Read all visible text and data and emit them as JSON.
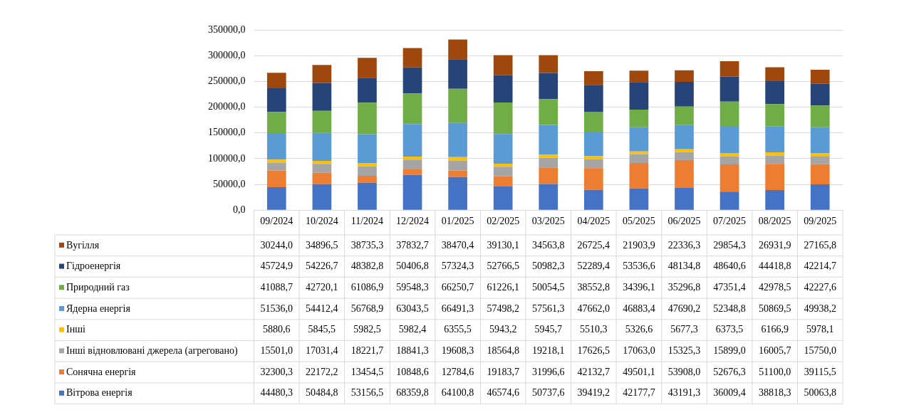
{
  "chart_data": {
    "type": "bar",
    "stacked": true,
    "grid": "y",
    "legend": "bottom",
    "categories": [
      "09/2024",
      "10/2024",
      "11/2024",
      "12/2024",
      "01/2025",
      "02/2025",
      "03/2025",
      "04/2025",
      "05/2025",
      "06/2025",
      "07/2025",
      "08/2025",
      "09/2025"
    ],
    "ylim": [
      0,
      350000
    ],
    "yticks": [
      {
        "value": 0,
        "label": "0,0"
      },
      {
        "value": 50000,
        "label": "50000,0"
      },
      {
        "value": 100000,
        "label": "100000,0"
      },
      {
        "value": 150000,
        "label": "150000,0"
      },
      {
        "value": 200000,
        "label": "200000,0"
      },
      {
        "value": 250000,
        "label": "250000,0"
      },
      {
        "value": 300000,
        "label": "300000,0"
      },
      {
        "value": 350000,
        "label": "350000,0"
      }
    ],
    "series": [
      {
        "name": "Вітрова енергія",
        "color": "#4472c4",
        "values": [
          44480.3,
          50484.8,
          53156.5,
          68359.8,
          64100.8,
          46574.6,
          50737.6,
          39419.2,
          42177.7,
          43191.3,
          36009.4,
          38818.3,
          50063.8
        ],
        "value_labels": [
          "44480,3",
          "50484,8",
          "53156,5",
          "68359,8",
          "64100,8",
          "46574,6",
          "50737,6",
          "39419,2",
          "42177,7",
          "43191,3",
          "36009,4",
          "38818,3",
          "50063,8"
        ]
      },
      {
        "name": "Сонячна енергія",
        "color": "#ed7d31",
        "values": [
          32300.3,
          22172.2,
          13454.5,
          10848.6,
          12784.6,
          19183.7,
          31996.6,
          42132.7,
          49501.1,
          53908.0,
          52676.3,
          51100.0,
          39115.5
        ],
        "value_labels": [
          "32300,3",
          "22172,2",
          "13454,5",
          "10848,6",
          "12784,6",
          "19183,7",
          "31996,6",
          "42132,7",
          "49501,1",
          "53908,0",
          "52676,3",
          "51100,0",
          "39115,5"
        ]
      },
      {
        "name": "Інші відновлювані джерела (агреговано)",
        "color": "#a5a5a5",
        "values": [
          15501.0,
          17031.4,
          18221.7,
          18841.3,
          19608.3,
          18564.8,
          19218.1,
          17626.5,
          17063.0,
          15325.3,
          15899.0,
          16005.7,
          15750.0
        ],
        "value_labels": [
          "15501,0",
          "17031,4",
          "18221,7",
          "18841,3",
          "19608,3",
          "18564,8",
          "19218,1",
          "17626,5",
          "17063,0",
          "15325,3",
          "15899,0",
          "16005,7",
          "15750,0"
        ]
      },
      {
        "name": "Інші",
        "color": "#ffc000",
        "values": [
          5880.6,
          5845.5,
          5982.5,
          5982.4,
          6355.5,
          5943.2,
          5945.7,
          5510.3,
          5326.6,
          5677.3,
          6373.5,
          6166.9,
          5978.1
        ],
        "value_labels": [
          "5880,6",
          "5845,5",
          "5982,5",
          "5982,4",
          "6355,5",
          "5943,2",
          "5945,7",
          "5510,3",
          "5326,6",
          "5677,3",
          "6373,5",
          "6166,9",
          "5978,1"
        ]
      },
      {
        "name": "Ядерна енергія",
        "color": "#5b9bd5",
        "values": [
          51536.0,
          54412.4,
          56768.9,
          63043.5,
          66491.3,
          57498.2,
          57561.3,
          47662.0,
          46883.4,
          47690.2,
          52348.8,
          50869.5,
          49938.2
        ],
        "value_labels": [
          "51536,0",
          "54412,4",
          "56768,9",
          "63043,5",
          "66491,3",
          "57498,2",
          "57561,3",
          "47662,0",
          "46883,4",
          "47690,2",
          "52348,8",
          "50869,5",
          "49938,2"
        ]
      },
      {
        "name": "Природний газ",
        "color": "#70ad47",
        "values": [
          41088.7,
          42720.1,
          61086.9,
          59548.3,
          66250.7,
          61226.1,
          50054.5,
          38552.8,
          34396.1,
          35296.8,
          47351.4,
          42978.5,
          42227.6
        ],
        "value_labels": [
          "41088,7",
          "42720,1",
          "61086,9",
          "59548,3",
          "66250,7",
          "61226,1",
          "50054,5",
          "38552,8",
          "34396,1",
          "35296,8",
          "47351,4",
          "42978,5",
          "42227,6"
        ]
      },
      {
        "name": "Гідроенергія",
        "color": "#264478",
        "values": [
          45724.9,
          54226.7,
          48382.8,
          50406.8,
          57324.3,
          52766.5,
          50982.3,
          52289.4,
          53536.6,
          48134.8,
          48640.6,
          44418.8,
          42214.7
        ],
        "value_labels": [
          "45724,9",
          "54226,7",
          "48382,8",
          "50406,8",
          "57324,3",
          "52766,5",
          "50982,3",
          "52289,4",
          "53536,6",
          "48134,8",
          "48640,6",
          "44418,8",
          "42214,7"
        ]
      },
      {
        "name": "Вугілля",
        "color": "#9e480e",
        "values": [
          30244.0,
          34896.5,
          38735.3,
          37832.7,
          38470.4,
          39130.1,
          34563.8,
          26725.4,
          21903.9,
          22336.3,
          29854.3,
          26931.9,
          27165.8
        ],
        "value_labels": [
          "30244,0",
          "34896,5",
          "38735,3",
          "37832,7",
          "38470,4",
          "39130,1",
          "34563,8",
          "26725,4",
          "21903,9",
          "22336,3",
          "29854,3",
          "26931,9",
          "27165,8"
        ]
      }
    ]
  }
}
